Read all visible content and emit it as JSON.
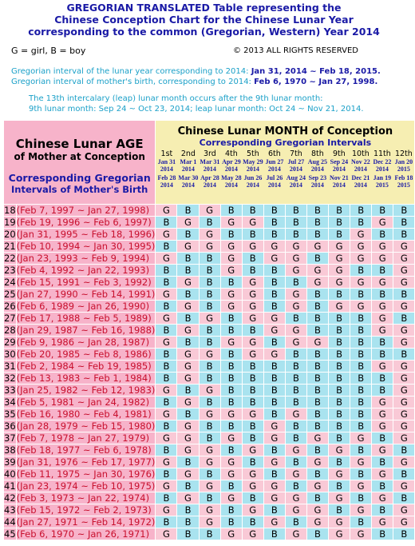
{
  "header": {
    "title_lines": [
      "GREGORIAN TRANSLATED Table representing the",
      "Chinese Conception Chart for the Chinese Lunar Year",
      "corresponding to the common (Gregorian, Western) Year 2014"
    ],
    "legend": "G = girl, B = boy",
    "copyright": "© 2013  ALL RIGHTS RESERVED",
    "lunar_year_label": "Gregorian interval of the lunar year corresponding to 2014: ",
    "lunar_year_interval": "Jan 31, 2014 ~ Feb 18, 2015.",
    "birth_label": "Gregorian interval of mother's birth, corresponding to 2014: ",
    "birth_interval": "Feb 6, 1970 ~ Jan 27, 1998.",
    "leap_lines": [
      "The 13th intercalary (leap) lunar month occurs after the 9th lunar month:",
      "9th lunar month: Sep 24 ~ Oct 23, 2014; leap lunar month: Oct 24 ~ Nov 21, 2014."
    ]
  },
  "table": {
    "age_heading": [
      "Chinese Lunar AGE",
      "of Mother at Conception"
    ],
    "age_subheading": [
      "Corresponding Gregorian",
      "Intervals of Mother's Birth"
    ],
    "month_heading": "Chinese Lunar MONTH of Conception",
    "month_subheading": "Corresponding Gregorian Intervals",
    "months": [
      {
        "label": "1st",
        "start": [
          "Jan 31",
          "2014"
        ],
        "end": [
          "Feb 28",
          "2014"
        ]
      },
      {
        "label": "2nd",
        "start": [
          "Mar 1",
          "2014"
        ],
        "end": [
          "Mar 30",
          "2014"
        ]
      },
      {
        "label": "3rd",
        "start": [
          "Mar 31",
          "2014"
        ],
        "end": [
          "Apr 28",
          "2014"
        ]
      },
      {
        "label": "4th",
        "start": [
          "Apr 29",
          "2014"
        ],
        "end": [
          "May 28",
          "2014"
        ]
      },
      {
        "label": "5th",
        "start": [
          "May 29",
          "2014"
        ],
        "end": [
          "Jun 26",
          "2014"
        ]
      },
      {
        "label": "6th",
        "start": [
          "Jun 27",
          "2014"
        ],
        "end": [
          "Jul 26",
          "2014"
        ]
      },
      {
        "label": "7th",
        "start": [
          "Jul 27",
          "2014"
        ],
        "end": [
          "Aug 24",
          "2014"
        ]
      },
      {
        "label": "8th",
        "start": [
          "Aug 25",
          "2014"
        ],
        "end": [
          "Sep 23",
          "2014"
        ]
      },
      {
        "label": "9th",
        "start": [
          "Sep 24",
          "2014"
        ],
        "end": [
          "Nov 21",
          "2014"
        ]
      },
      {
        "label": "10th",
        "start": [
          "Nov 22",
          "2014"
        ],
        "end": [
          "Dec 21",
          "2014"
        ]
      },
      {
        "label": "11th",
        "start": [
          "Dec 22",
          "2014"
        ],
        "end": [
          "Jan 19",
          "2015"
        ]
      },
      {
        "label": "12th",
        "start": [
          "Jan 20",
          "2015"
        ],
        "end": [
          "Feb 18",
          "2015"
        ]
      }
    ],
    "rows": [
      {
        "age": 18,
        "interval": "(Feb 7, 1997 ~ Jan 27, 1998)",
        "cells": [
          "G",
          "B",
          "G",
          "B",
          "B",
          "B",
          "B",
          "B",
          "B",
          "B",
          "B",
          "B"
        ]
      },
      {
        "age": 19,
        "interval": "(Feb 19, 1996 ~ Feb 6, 1997)",
        "cells": [
          "B",
          "G",
          "B",
          "G",
          "G",
          "B",
          "B",
          "B",
          "B",
          "B",
          "G",
          "B"
        ]
      },
      {
        "age": 20,
        "interval": "(Jan 31, 1995 ~ Feb 18, 1996)",
        "cells": [
          "G",
          "B",
          "G",
          "B",
          "B",
          "B",
          "B",
          "B",
          "B",
          "G",
          "B",
          "B"
        ]
      },
      {
        "age": 21,
        "interval": "(Feb 10, 1994 ~ Jan 30, 1995)",
        "cells": [
          "B",
          "G",
          "G",
          "G",
          "G",
          "G",
          "G",
          "G",
          "G",
          "G",
          "G",
          "G"
        ]
      },
      {
        "age": 22,
        "interval": "(Jan 23, 1993 ~ Feb 9, 1994)",
        "cells": [
          "G",
          "B",
          "B",
          "G",
          "B",
          "G",
          "G",
          "B",
          "G",
          "G",
          "G",
          "G"
        ]
      },
      {
        "age": 23,
        "interval": "(Feb 4, 1992 ~ Jan 22, 1993)",
        "cells": [
          "B",
          "B",
          "B",
          "G",
          "B",
          "B",
          "G",
          "G",
          "G",
          "B",
          "B",
          "G"
        ]
      },
      {
        "age": 24,
        "interval": "(Feb 15, 1991 ~ Feb 3, 1992)",
        "cells": [
          "B",
          "G",
          "B",
          "B",
          "G",
          "B",
          "B",
          "G",
          "G",
          "G",
          "G",
          "G"
        ]
      },
      {
        "age": 25,
        "interval": "(Jan 27, 1990 ~ Feb 14, 1991)",
        "cells": [
          "G",
          "B",
          "B",
          "G",
          "G",
          "B",
          "G",
          "B",
          "B",
          "B",
          "B",
          "B"
        ]
      },
      {
        "age": 26,
        "interval": "(Feb 6, 1989 ~ Jan 26, 1990)",
        "cells": [
          "B",
          "G",
          "B",
          "G",
          "G",
          "B",
          "G",
          "B",
          "G",
          "G",
          "G",
          "G"
        ]
      },
      {
        "age": 27,
        "interval": "(Feb 17, 1988 ~ Feb 5, 1989)",
        "cells": [
          "G",
          "B",
          "G",
          "B",
          "G",
          "G",
          "B",
          "B",
          "B",
          "B",
          "G",
          "B"
        ]
      },
      {
        "age": 28,
        "interval": "(Jan 29, 1987 ~ Feb 16, 1988)",
        "cells": [
          "B",
          "G",
          "B",
          "B",
          "B",
          "G",
          "G",
          "B",
          "B",
          "B",
          "G",
          "G"
        ]
      },
      {
        "age": 29,
        "interval": "(Feb 9, 1986 ~ Jan 28, 1987)",
        "cells": [
          "G",
          "B",
          "B",
          "G",
          "G",
          "B",
          "G",
          "G",
          "B",
          "B",
          "B",
          "G"
        ]
      },
      {
        "age": 30,
        "interval": "(Feb 20, 1985 ~ Feb 8, 1986)",
        "cells": [
          "B",
          "G",
          "G",
          "B",
          "G",
          "G",
          "B",
          "B",
          "B",
          "B",
          "B",
          "B"
        ]
      },
      {
        "age": 31,
        "interval": "(Feb 2, 1984 ~ Feb 19, 1985)",
        "cells": [
          "B",
          "G",
          "B",
          "B",
          "B",
          "B",
          "B",
          "B",
          "B",
          "B",
          "G",
          "G"
        ]
      },
      {
        "age": 32,
        "interval": "(Feb 13, 1983 ~ Feb 1, 1984)",
        "cells": [
          "B",
          "G",
          "B",
          "B",
          "B",
          "B",
          "B",
          "B",
          "B",
          "B",
          "B",
          "G"
        ]
      },
      {
        "age": 33,
        "interval": "(Jan 25, 1982 ~ Feb 12, 1983)",
        "cells": [
          "G",
          "B",
          "G",
          "B",
          "B",
          "B",
          "B",
          "B",
          "B",
          "B",
          "B",
          "G"
        ]
      },
      {
        "age": 34,
        "interval": "(Feb 5, 1981 ~ Jan 24, 1982)",
        "cells": [
          "B",
          "G",
          "B",
          "B",
          "B",
          "B",
          "B",
          "B",
          "B",
          "B",
          "G",
          "G"
        ]
      },
      {
        "age": 35,
        "interval": "(Feb 16, 1980 ~ Feb 4, 1981)",
        "cells": [
          "G",
          "B",
          "G",
          "G",
          "G",
          "B",
          "G",
          "B",
          "B",
          "B",
          "G",
          "G"
        ]
      },
      {
        "age": 36,
        "interval": "(Jan 28, 1979 ~ Feb 15, 1980)",
        "cells": [
          "B",
          "G",
          "B",
          "B",
          "B",
          "G",
          "B",
          "B",
          "B",
          "B",
          "G",
          "G"
        ]
      },
      {
        "age": 37,
        "interval": "(Feb 7, 1978 ~ Jan 27, 1979)",
        "cells": [
          "G",
          "G",
          "B",
          "G",
          "B",
          "G",
          "B",
          "G",
          "B",
          "G",
          "B",
          "G"
        ]
      },
      {
        "age": 38,
        "interval": "(Feb 18, 1977 ~ Feb 6, 1978)",
        "cells": [
          "B",
          "G",
          "G",
          "B",
          "G",
          "B",
          "G",
          "B",
          "G",
          "B",
          "G",
          "B"
        ]
      },
      {
        "age": 39,
        "interval": "(Jan 31, 1976 ~ Feb 17, 1977)",
        "cells": [
          "G",
          "B",
          "G",
          "G",
          "B",
          "G",
          "B",
          "G",
          "B",
          "G",
          "B",
          "G"
        ]
      },
      {
        "age": 40,
        "interval": "(Feb 11, 1975 ~ Jan 30, 1976)",
        "cells": [
          "B",
          "G",
          "B",
          "G",
          "G",
          "B",
          "G",
          "B",
          "G",
          "B",
          "G",
          "B"
        ]
      },
      {
        "age": 41,
        "interval": "(Jan 23, 1974 ~ Feb 10, 1975)",
        "cells": [
          "G",
          "B",
          "G",
          "B",
          "G",
          "G",
          "B",
          "G",
          "B",
          "G",
          "B",
          "G"
        ]
      },
      {
        "age": 42,
        "interval": "(Feb 3, 1973 ~ Jan 22, 1974)",
        "cells": [
          "B",
          "G",
          "B",
          "G",
          "B",
          "G",
          "G",
          "B",
          "G",
          "B",
          "G",
          "B"
        ]
      },
      {
        "age": 43,
        "interval": "(Feb 15, 1972 ~ Feb 2, 1973)",
        "cells": [
          "G",
          "B",
          "G",
          "B",
          "G",
          "B",
          "G",
          "G",
          "B",
          "G",
          "B",
          "G"
        ]
      },
      {
        "age": 44,
        "interval": "(Jan 27, 1971 ~ Feb 14, 1972)",
        "cells": [
          "B",
          "B",
          "G",
          "B",
          "B",
          "G",
          "B",
          "G",
          "G",
          "B",
          "G",
          "G"
        ]
      },
      {
        "age": 45,
        "interval": "(Feb 6, 1970 ~ Jan 26, 1971)",
        "cells": [
          "G",
          "B",
          "B",
          "G",
          "G",
          "B",
          "G",
          "B",
          "G",
          "G",
          "B",
          "B"
        ]
      }
    ]
  }
}
